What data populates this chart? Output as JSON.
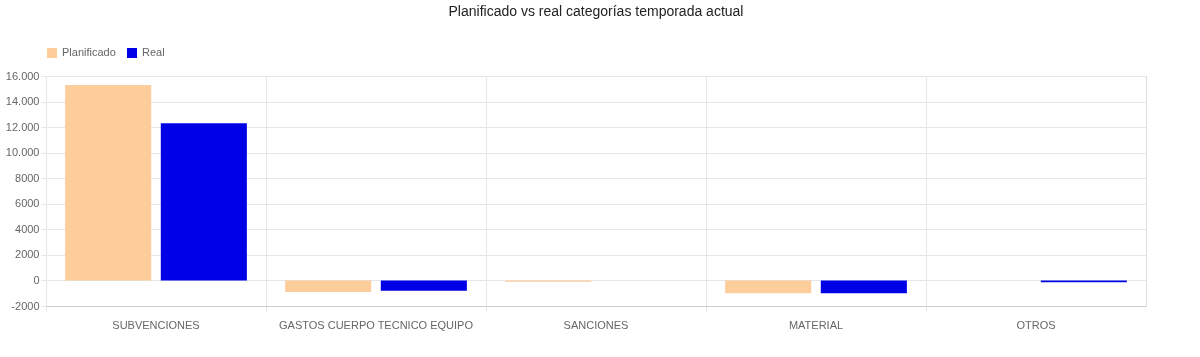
{
  "chart_data": {
    "type": "bar",
    "title": "Planificado vs real categorías temporada actual",
    "categories": [
      "SUBVENCIONES",
      "GASTOS CUERPO TECNICO EQUIPO",
      "SANCIONES",
      "MATERIAL",
      "OTROS"
    ],
    "series": [
      {
        "name": "Planificado",
        "color": "#fecd9c",
        "values": [
          15300,
          -900,
          -100,
          -1000,
          0
        ]
      },
      {
        "name": "Real",
        "color": "#0000e6",
        "values": [
          12300,
          -800,
          0,
          -1000,
          -150
        ]
      }
    ],
    "ylim": [
      -2000,
      16000
    ],
    "yticks": [
      -2000,
      0,
      2000,
      4000,
      6000,
      8000,
      {
        "value": 10000,
        "label": "10.000"
      },
      {
        "value": 12000,
        "label": "12.000"
      },
      {
        "value": 14000,
        "label": "14.000"
      },
      {
        "value": 16000,
        "label": "16.000"
      }
    ],
    "grid": true,
    "legend": "top"
  }
}
